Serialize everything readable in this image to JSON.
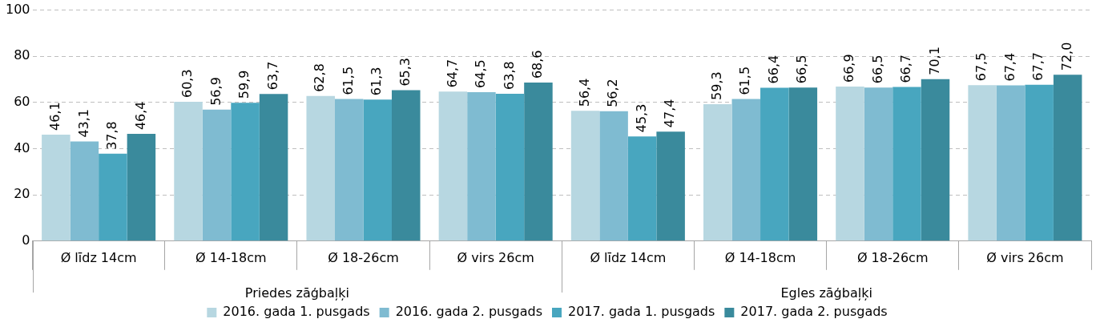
{
  "chart_data": {
    "type": "bar",
    "categories": [
      "Ø līdz 14cm",
      "Ø 14-18cm",
      "Ø 18-26cm",
      "Ø virs 26cm",
      "Ø līdz 14cm",
      "Ø 14-18cm",
      "Ø 18-26cm",
      "Ø virs 26cm"
    ],
    "series": [
      {
        "name": "2016. gada 1. pusgads",
        "color": "#b7d7e1",
        "values": [
          46.1,
          60.3,
          62.8,
          64.7,
          56.4,
          59.3,
          66.9,
          67.5
        ],
        "value_labels": [
          "46,1",
          "60,3",
          "62,8",
          "64,7",
          "56,4",
          "59,3",
          "66,9",
          "67,5"
        ]
      },
      {
        "name": "2016. gada 2. pusgads",
        "color": "#7fbbd1",
        "values": [
          43.1,
          56.9,
          61.5,
          64.5,
          56.2,
          61.5,
          66.5,
          67.4
        ],
        "value_labels": [
          "43,1",
          "56,9",
          "61,5",
          "64,5",
          "56,2",
          "61,5",
          "66,5",
          "67,4"
        ]
      },
      {
        "name": "2017. gada 1. pusgads",
        "color": "#48a6bf",
        "values": [
          37.8,
          59.9,
          61.3,
          63.8,
          45.3,
          66.4,
          66.7,
          67.7
        ],
        "value_labels": [
          "37,8",
          "59,9",
          "61,3",
          "63,8",
          "45,3",
          "66,4",
          "66,7",
          "67,7"
        ]
      },
      {
        "name": "2017. gada 2. pusgads",
        "color": "#3a8a9c",
        "values": [
          46.4,
          63.7,
          65.3,
          68.6,
          47.4,
          66.5,
          70.1,
          72.0
        ],
        "value_labels": [
          "46,4",
          "63,7",
          "65,3",
          "68,6",
          "47,4",
          "66,5",
          "70,1",
          "72,0"
        ]
      }
    ],
    "annotations": [
      "Priedes zāģbaļķi",
      "Egles zāģbaļķi"
    ],
    "ylim": [
      0,
      100
    ],
    "yticks": [
      0,
      20,
      40,
      60,
      80,
      100
    ],
    "grid": "y",
    "legend": "bottom"
  }
}
